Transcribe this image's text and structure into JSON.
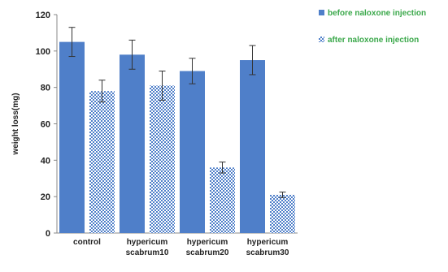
{
  "chart_data": {
    "type": "bar",
    "categories": [
      "control",
      "hypericum scabrum10",
      "hypericum scabrum20",
      "hypericum scabrum30"
    ],
    "category_lines": [
      [
        "control"
      ],
      [
        "hypericum",
        "scabrum10"
      ],
      [
        "hypericum",
        "scabrum20"
      ],
      [
        "hypericum",
        "scabrum30"
      ]
    ],
    "series": [
      {
        "name": "before naloxone injection",
        "values": [
          105,
          98,
          89,
          95
        ],
        "errors": [
          8,
          8,
          7,
          8
        ],
        "color": "#4f7fc9",
        "pattern": "solid"
      },
      {
        "name": "after naloxone injection",
        "values": [
          78,
          81,
          36,
          21
        ],
        "errors": [
          6,
          8,
          3,
          1.5
        ],
        "color": "#4f7fc9",
        "pattern": "checker"
      }
    ],
    "title": "",
    "xlabel": "",
    "ylabel": "weight loss(mg)",
    "ylim": [
      0,
      120
    ],
    "yticks": [
      0,
      20,
      40,
      60,
      80,
      100,
      120
    ],
    "ytick_labels": [
      "0",
      "20",
      "40",
      "60",
      "80",
      "100",
      "120"
    ],
    "grid": false,
    "legend_position": "top-right",
    "legend_text_color": "#3aa84a"
  }
}
